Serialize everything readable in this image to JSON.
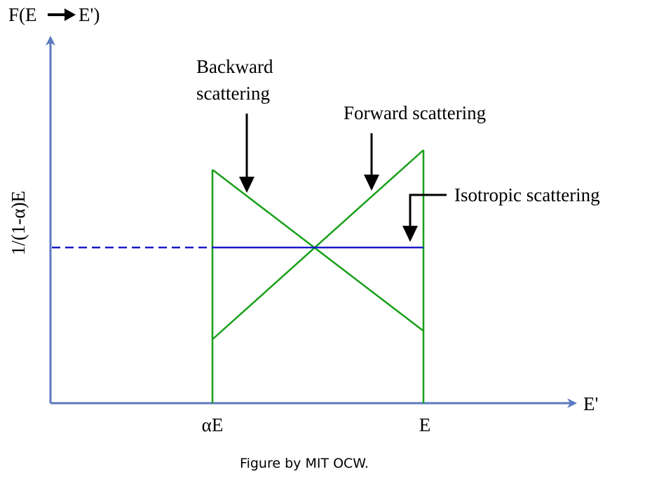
{
  "y_axis_title": {
    "left": "F(E",
    "right": "E')"
  },
  "y_axis_value_label": "1/(1-α)E",
  "x_axis_title": "E'",
  "x_ticks": {
    "alpha_e": "αE",
    "e": "E"
  },
  "annotations": {
    "backward_line1": "Backward",
    "backward_line2": "scattering",
    "forward": "Forward scattering",
    "isotropic": "Isotropic scattering"
  },
  "caption": "Figure by MIT OCW.",
  "colors": {
    "axis": "#5b7abf",
    "green": "#17a017",
    "blue": "#1a1acc",
    "arrow": "#000000"
  }
}
